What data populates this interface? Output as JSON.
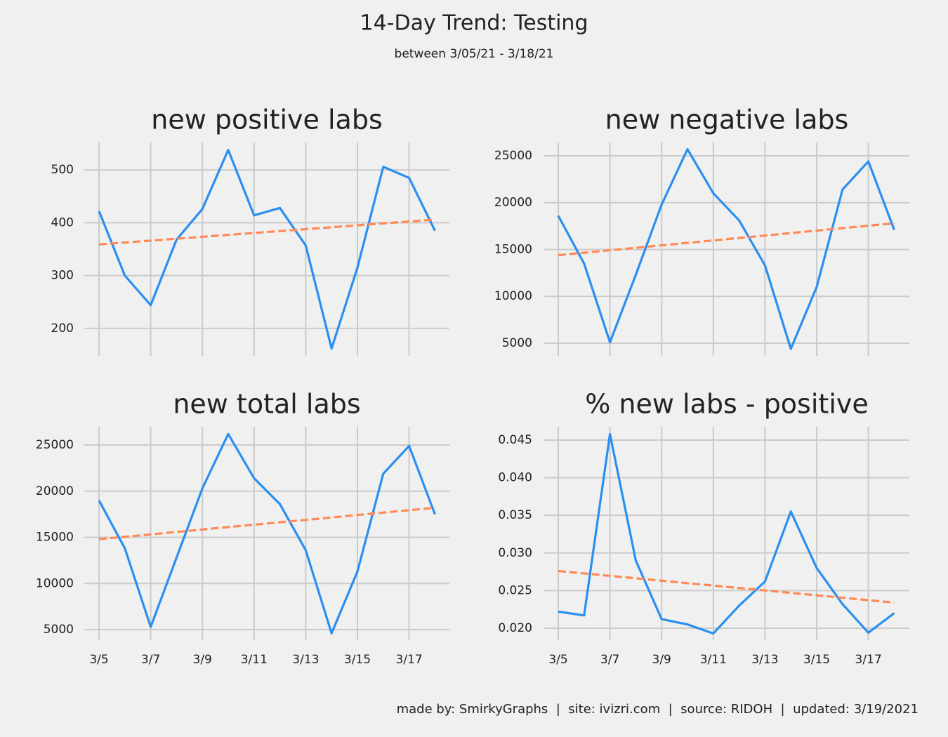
{
  "title": "14-Day Trend: Testing",
  "subtitle": "between 3/05/21 - 3/18/21",
  "footer": "made by: SmirkyGraphs  |  site: ivizri.com  |  source: RIDOH  |  updated: 3/19/2021",
  "chart_data": [
    {
      "type": "line",
      "title": "new positive labs",
      "categories": [
        "3/5",
        null,
        "3/7",
        null,
        "3/9",
        null,
        "3/11",
        null,
        "3/13",
        null,
        "3/15",
        null,
        "3/17",
        null
      ],
      "show_x_labels": false,
      "series": [
        {
          "color": "#2a8ff0",
          "linestyle": "solid",
          "values": [
            422,
            300,
            244,
            368,
            426,
            538,
            414,
            428,
            357,
            162,
            315,
            506,
            485,
            385
          ]
        },
        {
          "color": "#ff8a55",
          "linestyle": "dashed",
          "values": [
            359,
            362.6,
            366.2,
            369.8,
            373.5,
            377.1,
            380.7,
            384.3,
            387.9,
            391.5,
            395.2,
            398.8,
            402.4,
            406
          ]
        }
      ],
      "ylim": [
        148,
        552
      ],
      "yticks": [
        200,
        300,
        400,
        500
      ],
      "grid": true
    },
    {
      "type": "line",
      "title": "new negative labs",
      "categories": [
        "3/5",
        null,
        "3/7",
        null,
        "3/9",
        null,
        "3/11",
        null,
        "3/13",
        null,
        "3/15",
        null,
        "3/17",
        null
      ],
      "show_x_labels": false,
      "series": [
        {
          "color": "#2a8ff0",
          "linestyle": "solid",
          "values": [
            18600,
            13500,
            5100,
            12300,
            19800,
            25700,
            21000,
            18100,
            13300,
            4400,
            11000,
            21400,
            24400,
            17100
          ]
        },
        {
          "color": "#ff8a55",
          "linestyle": "dashed",
          "values": [
            14400,
            14660,
            14920,
            15180,
            15450,
            15710,
            15970,
            16230,
            16490,
            16750,
            17020,
            17280,
            17540,
            17800
          ]
        }
      ],
      "ylim": [
        3650,
        26420
      ],
      "yticks": [
        5000,
        10000,
        15000,
        20000,
        25000
      ],
      "grid": true
    },
    {
      "type": "line",
      "title": "new total labs",
      "categories": [
        "3/5",
        null,
        "3/7",
        null,
        "3/9",
        null,
        "3/11",
        null,
        "3/13",
        null,
        "3/15",
        null,
        "3/17",
        null
      ],
      "show_x_labels": true,
      "series": [
        {
          "color": "#2a8ff0",
          "linestyle": "solid",
          "values": [
            19000,
            13800,
            5300,
            12800,
            20300,
            26200,
            21400,
            18600,
            13600,
            4600,
            11300,
            21900,
            24900,
            17500
          ]
        },
        {
          "color": "#ff8a55",
          "linestyle": "dashed",
          "values": [
            14800,
            15060,
            15320,
            15580,
            15850,
            16110,
            16370,
            16630,
            16890,
            17150,
            17420,
            17680,
            17940,
            18200
          ]
        }
      ],
      "ylim": [
        3860,
        26980
      ],
      "yticks": [
        5000,
        10000,
        15000,
        20000,
        25000
      ],
      "grid": true
    },
    {
      "type": "line",
      "title": "% new labs - positive",
      "categories": [
        "3/5",
        null,
        "3/7",
        null,
        "3/9",
        null,
        "3/11",
        null,
        "3/13",
        null,
        "3/15",
        null,
        "3/17",
        null
      ],
      "show_x_labels": true,
      "series": [
        {
          "color": "#2a8ff0",
          "linestyle": "solid",
          "values": [
            0.0222,
            0.0217,
            0.0458,
            0.029,
            0.0212,
            0.0205,
            0.0193,
            0.023,
            0.0262,
            0.0355,
            0.028,
            0.0232,
            0.0194,
            0.022
          ]
        },
        {
          "color": "#ff8a55",
          "linestyle": "dashed",
          "values": [
            0.0276,
            0.02728,
            0.02695,
            0.02663,
            0.02631,
            0.02598,
            0.02566,
            0.02534,
            0.02502,
            0.02469,
            0.02437,
            0.02405,
            0.02372,
            0.0234
          ]
        }
      ],
      "ylim": [
        0.01841,
        0.04677
      ],
      "yticks": [
        {
          "value": 0.02,
          "label": "0.020"
        },
        0.025,
        {
          "value": 0.03,
          "label": "0.030"
        },
        0.035,
        {
          "value": 0.04,
          "label": "0.040"
        },
        0.045
      ],
      "grid": true
    }
  ]
}
